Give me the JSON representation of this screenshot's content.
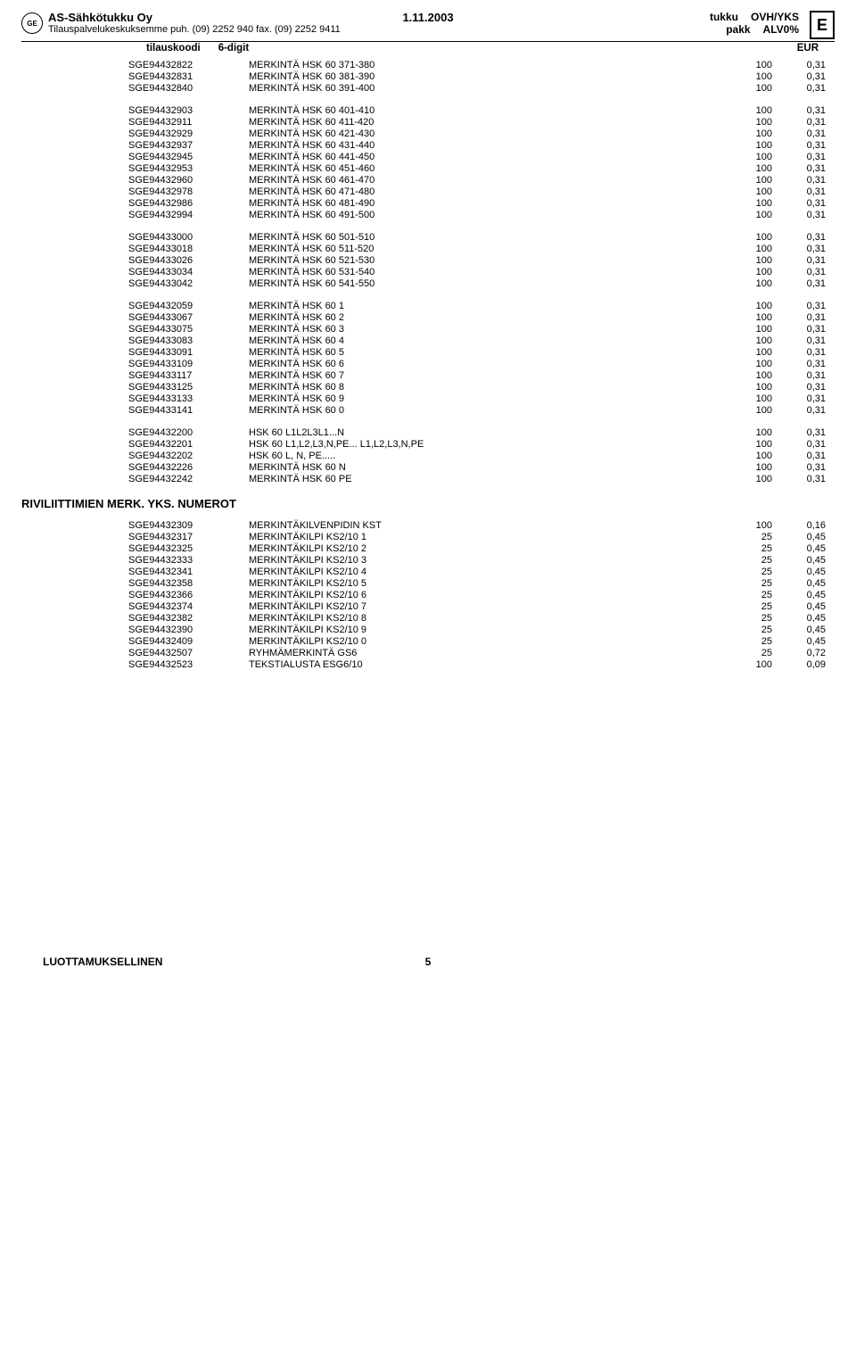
{
  "header": {
    "company": "AS-Sähkötukku Oy",
    "service": "Tilauspalvelukeskuksemme puh. (09) 2252 940 fax. (09) 2252 9411",
    "date": "1.11.2003",
    "col1a": "tukku",
    "col1b": "pakk",
    "col2a": "OVH/YKS",
    "col2b": "ALV0%",
    "badge": "E"
  },
  "subheader": {
    "code": "tilauskoodi",
    "digit": "6-digit",
    "eur": "EUR"
  },
  "groups": [
    [
      {
        "code": "SGE94432822",
        "desc": "MERKINTÄ HSK 60 371-380",
        "qty": "100",
        "price": "0,31"
      },
      {
        "code": "SGE94432831",
        "desc": "MERKINTÄ HSK 60 381-390",
        "qty": "100",
        "price": "0,31"
      },
      {
        "code": "SGE94432840",
        "desc": "MERKINTÄ HSK 60 391-400",
        "qty": "100",
        "price": "0,31"
      }
    ],
    [
      {
        "code": "SGE94432903",
        "desc": "MERKINTÄ HSK 60 401-410",
        "qty": "100",
        "price": "0,31"
      },
      {
        "code": "SGE94432911",
        "desc": "MERKINTÄ HSK 60 411-420",
        "qty": "100",
        "price": "0,31"
      },
      {
        "code": "SGE94432929",
        "desc": "MERKINTÄ HSK 60 421-430",
        "qty": "100",
        "price": "0,31"
      },
      {
        "code": "SGE94432937",
        "desc": "MERKINTÄ HSK 60 431-440",
        "qty": "100",
        "price": "0,31"
      },
      {
        "code": "SGE94432945",
        "desc": "MERKINTÄ HSK 60 441-450",
        "qty": "100",
        "price": "0,31"
      },
      {
        "code": "SGE94432953",
        "desc": "MERKINTÄ HSK 60 451-460",
        "qty": "100",
        "price": "0,31"
      },
      {
        "code": "SGE94432960",
        "desc": "MERKINTÄ HSK 60 461-470",
        "qty": "100",
        "price": "0,31"
      },
      {
        "code": "SGE94432978",
        "desc": "MERKINTÄ HSK 60 471-480",
        "qty": "100",
        "price": "0,31"
      },
      {
        "code": "SGE94432986",
        "desc": "MERKINTÄ HSK 60 481-490",
        "qty": "100",
        "price": "0,31"
      },
      {
        "code": "SGE94432994",
        "desc": "MERKINTÄ HSK 60 491-500",
        "qty": "100",
        "price": "0,31"
      }
    ],
    [
      {
        "code": "SGE94433000",
        "desc": "MERKINTÄ HSK 60 501-510",
        "qty": "100",
        "price": "0,31"
      },
      {
        "code": "SGE94433018",
        "desc": "MERKINTÄ HSK 60 511-520",
        "qty": "100",
        "price": "0,31"
      },
      {
        "code": "SGE94433026",
        "desc": "MERKINTÄ HSK 60 521-530",
        "qty": "100",
        "price": "0,31"
      },
      {
        "code": "SGE94433034",
        "desc": "MERKINTÄ HSK 60 531-540",
        "qty": "100",
        "price": "0,31"
      },
      {
        "code": "SGE94433042",
        "desc": "MERKINTÄ HSK 60 541-550",
        "qty": "100",
        "price": "0,31"
      }
    ],
    [
      {
        "code": "SGE94432059",
        "desc": "MERKINTÄ HSK 60  1",
        "qty": "100",
        "price": "0,31"
      },
      {
        "code": "SGE94433067",
        "desc": "MERKINTÄ HSK 60  2",
        "qty": "100",
        "price": "0,31"
      },
      {
        "code": "SGE94433075",
        "desc": "MERKINTÄ HSK 60  3",
        "qty": "100",
        "price": "0,31"
      },
      {
        "code": "SGE94433083",
        "desc": "MERKINTÄ HSK 60  4",
        "qty": "100",
        "price": "0,31"
      },
      {
        "code": "SGE94433091",
        "desc": "MERKINTÄ HSK 60  5",
        "qty": "100",
        "price": "0,31"
      },
      {
        "code": "SGE94433109",
        "desc": "MERKINTÄ HSK 60  6",
        "qty": "100",
        "price": "0,31"
      },
      {
        "code": "SGE94433117",
        "desc": "MERKINTÄ HSK 60  7",
        "qty": "100",
        "price": "0,31"
      },
      {
        "code": "SGE94433125",
        "desc": "MERKINTÄ HSK 60  8",
        "qty": "100",
        "price": "0,31"
      },
      {
        "code": "SGE94433133",
        "desc": "MERKINTÄ HSK 60  9",
        "qty": "100",
        "price": "0,31"
      },
      {
        "code": "SGE94433141",
        "desc": "MERKINTÄ HSK 60  0",
        "qty": "100",
        "price": "0,31"
      }
    ],
    [
      {
        "code": "SGE94432200",
        "desc": "HSK 60  L1L2L3L1...N",
        "qty": "100",
        "price": "0,31"
      },
      {
        "code": "SGE94432201",
        "desc": "HSK 60  L1,L2,L3,N,PE... L1,L2,L3,N,PE",
        "qty": "100",
        "price": "0,31"
      },
      {
        "code": "SGE94432202",
        "desc": "HSK 60  L, N, PE.....",
        "qty": "100",
        "price": "0,31"
      },
      {
        "code": "SGE94432226",
        "desc": "MERKINTÄ HSK 60  N",
        "qty": "100",
        "price": "0,31"
      },
      {
        "code": "SGE94432242",
        "desc": "MERKINTÄ HSK 60  PE",
        "qty": "100",
        "price": "0,31"
      }
    ]
  ],
  "section2": {
    "title": "RIVILIITTIMIEN MERK. YKS. NUMEROT",
    "rows": [
      {
        "code": "SGE94432309",
        "desc": "MERKINTÄKILVENPIDIN  KST",
        "qty": "100",
        "price": "0,16"
      },
      {
        "code": "SGE94432317",
        "desc": "MERKINTÄKILPI  KS2/10  1",
        "qty": "25",
        "price": "0,45"
      },
      {
        "code": "SGE94432325",
        "desc": "MERKINTÄKILPI  KS2/10  2",
        "qty": "25",
        "price": "0,45"
      },
      {
        "code": "SGE94432333",
        "desc": "MERKINTÄKILPI  KS2/10  3",
        "qty": "25",
        "price": "0,45"
      },
      {
        "code": "SGE94432341",
        "desc": "MERKINTÄKILPI  KS2/10  4",
        "qty": "25",
        "price": "0,45"
      },
      {
        "code": "SGE94432358",
        "desc": "MERKINTÄKILPI  KS2/10  5",
        "qty": "25",
        "price": "0,45"
      },
      {
        "code": "SGE94432366",
        "desc": "MERKINTÄKILPI  KS2/10  6",
        "qty": "25",
        "price": "0,45"
      },
      {
        "code": "SGE94432374",
        "desc": "MERKINTÄKILPI  KS2/10  7",
        "qty": "25",
        "price": "0,45"
      },
      {
        "code": "SGE94432382",
        "desc": "MERKINTÄKILPI  KS2/10  8",
        "qty": "25",
        "price": "0,45"
      },
      {
        "code": "SGE94432390",
        "desc": "MERKINTÄKILPI  KS2/10  9",
        "qty": "25",
        "price": "0,45"
      },
      {
        "code": "SGE94432409",
        "desc": "MERKINTÄKILPI  KS2/10  0",
        "qty": "25",
        "price": "0,45"
      },
      {
        "code": "SGE94432507",
        "desc": "RYHMÄMERKINTÄ  GS6",
        "qty": "25",
        "price": "0,72"
      },
      {
        "code": "SGE94432523",
        "desc": "TEKSTIALUSTA  ESG6/10",
        "qty": "100",
        "price": "0,09"
      }
    ]
  },
  "footer": {
    "conf": "LUOTTAMUKSELLINEN",
    "page": "5"
  }
}
